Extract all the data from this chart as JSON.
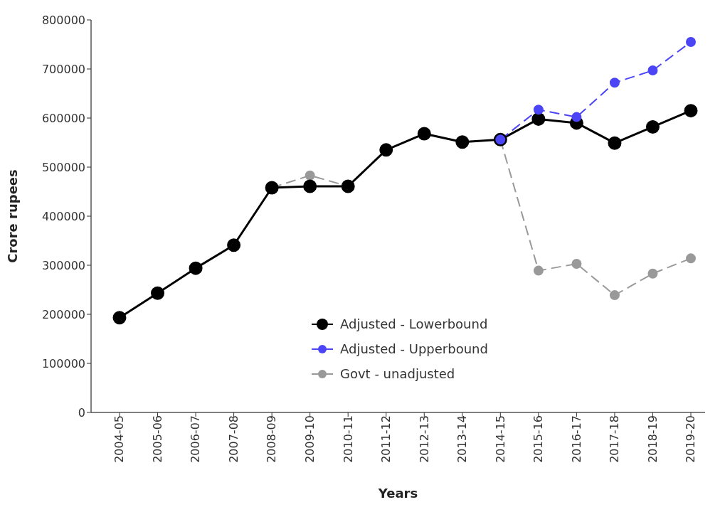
{
  "chart_data": {
    "type": "line",
    "xlabel": "Years",
    "ylabel": "Crore rupees",
    "categories": [
      "2004-05",
      "2005-06",
      "2006-07",
      "2007-08",
      "2008-09",
      "2009-10",
      "2010-11",
      "2011-12",
      "2012-13",
      "2013-14",
      "2014-15",
      "2015-16",
      "2016-17",
      "2017-18",
      "2018-19",
      "2019-20"
    ],
    "series": [
      {
        "name": "Adjusted - Lowerbound",
        "color": "#000000",
        "line_style": "solid",
        "values": [
          193000,
          243000,
          294000,
          341000,
          458000,
          461000,
          461000,
          535000,
          568000,
          551000,
          556000,
          598000,
          590000,
          549000,
          582000,
          615000
        ]
      },
      {
        "name": "Adjusted - Upperbound",
        "color": "#4b45f5",
        "line_style": "dashed",
        "values": [
          null,
          null,
          null,
          null,
          null,
          null,
          null,
          null,
          null,
          null,
          556000,
          617000,
          602000,
          672000,
          697000,
          755000
        ]
      },
      {
        "name": "Govt - unadjusted",
        "color": "#999999",
        "line_style": "dashed",
        "values": [
          null,
          null,
          null,
          null,
          458000,
          483000,
          461000,
          null,
          null,
          null,
          556000,
          289000,
          303000,
          239000,
          283000,
          314000
        ]
      }
    ],
    "ylim": [
      0,
      800000
    ],
    "yticks": [
      0,
      100000,
      200000,
      300000,
      400000,
      500000,
      600000,
      700000,
      800000
    ],
    "grid": false,
    "legend": "bottom",
    "marker": "circle"
  }
}
